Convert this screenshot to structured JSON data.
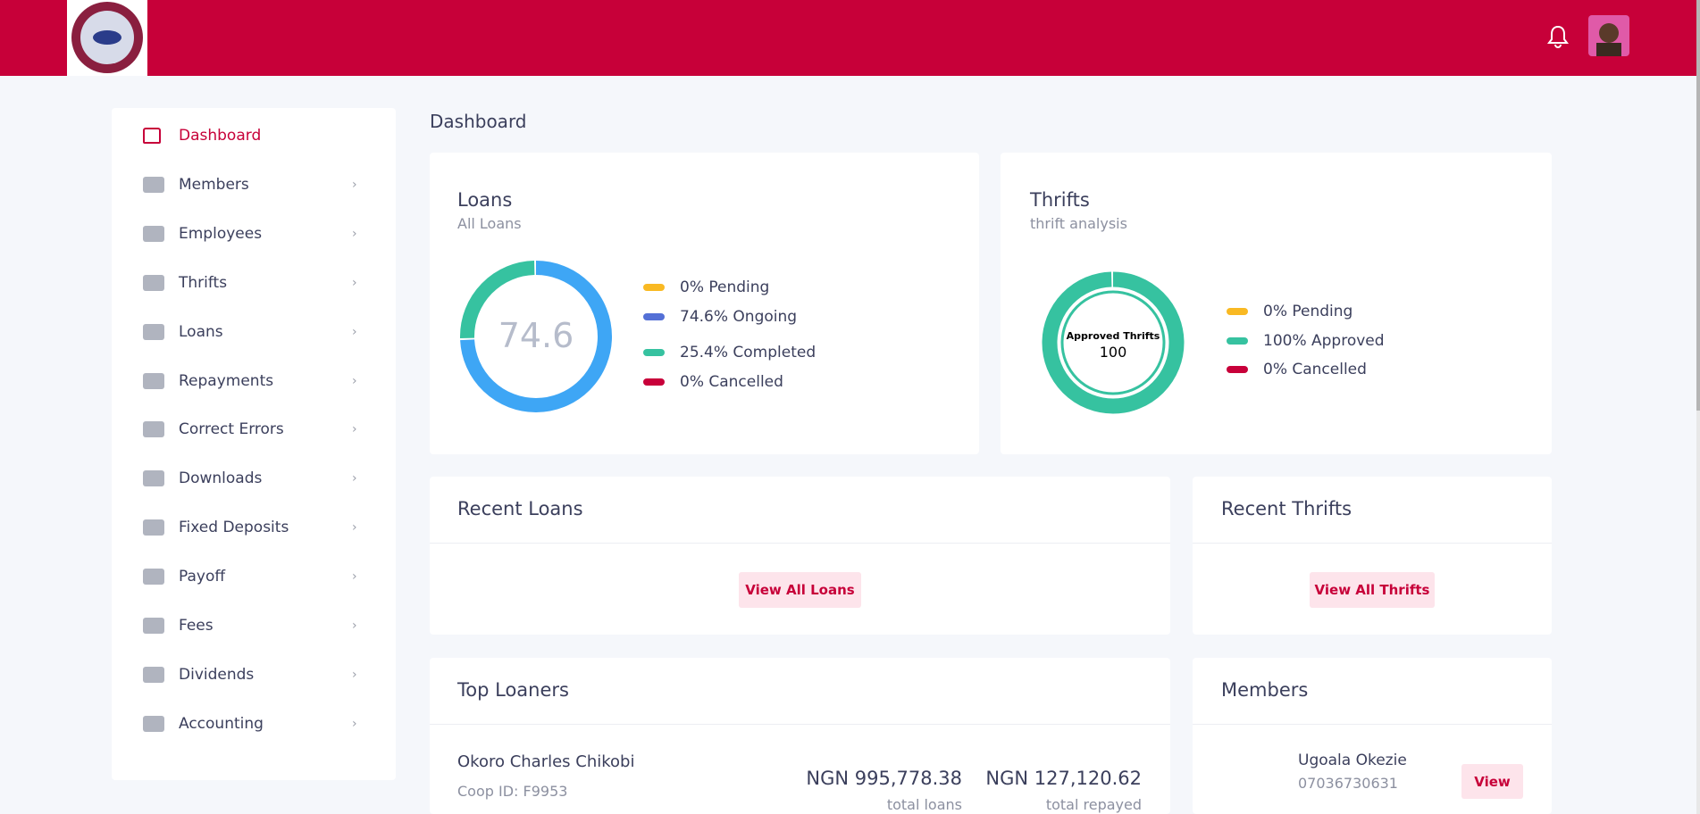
{
  "header": {
    "logo_alt": null
  },
  "sidebar": {
    "items": [
      "Dashboard",
      "Members",
      "Employees",
      "Thrifts",
      "Loans",
      "Repayments",
      "Correct Errors",
      "Downloads",
      "Fixed Deposits",
      "Payoff",
      "Fees",
      "Dividends",
      "Accounting"
    ]
  },
  "page_title": "Dashboard",
  "loans_card": {
    "title": "Loans",
    "subtitle": "All Loans",
    "chart": {
      "type": "donut",
      "segments": [
        {
          "label": "0% Pending",
          "value": 0,
          "color": "#f9b923"
        },
        {
          "label": "74.6% Ongoing",
          "value": 74.6,
          "color": "#3ea6f5",
          "legend_color": "#5470d6"
        },
        {
          "label": "25.4% Completed",
          "value": 25.4,
          "color": "#36c2a0"
        },
        {
          "label": "0% Cancelled",
          "value": 0,
          "color": "#c8003a"
        }
      ]
    }
  },
  "thrifts_card": {
    "title": "Thrifts",
    "subtitle": "thrift analysis",
    "chart": {
      "type": "donut",
      "center_label": "Approved Thrifts",
      "segments": [
        {
          "label": "0% Pending",
          "value": 0,
          "color": "#f9b923"
        },
        {
          "label": "100% Approved",
          "value": 100,
          "color": "#36c2a0"
        },
        {
          "label": "0% Cancelled",
          "value": 0,
          "color": "#c8003a"
        }
      ]
    }
  },
  "recent_loans": {
    "title": "Recent Loans",
    "button": "View All Loans"
  },
  "recent_thrifts": {
    "title": "Recent Thrifts",
    "button": "View All Thrifts"
  },
  "top_loaners": {
    "title": "Top Loaners",
    "rows": [
      {
        "name": "Okoro Charles Chikobi",
        "coop_id": "Coop ID: F9953",
        "total_loans": "NGN 995,778.38",
        "total_loans_label": "total loans",
        "total_repayed": "NGN 127,120.62",
        "total_repayed_label": "total repayed"
      }
    ]
  },
  "members": {
    "title": "Members",
    "rows": [
      {
        "name": "Ugoala Okezie",
        "phone": "07036730631",
        "button": "View"
      }
    ]
  }
}
